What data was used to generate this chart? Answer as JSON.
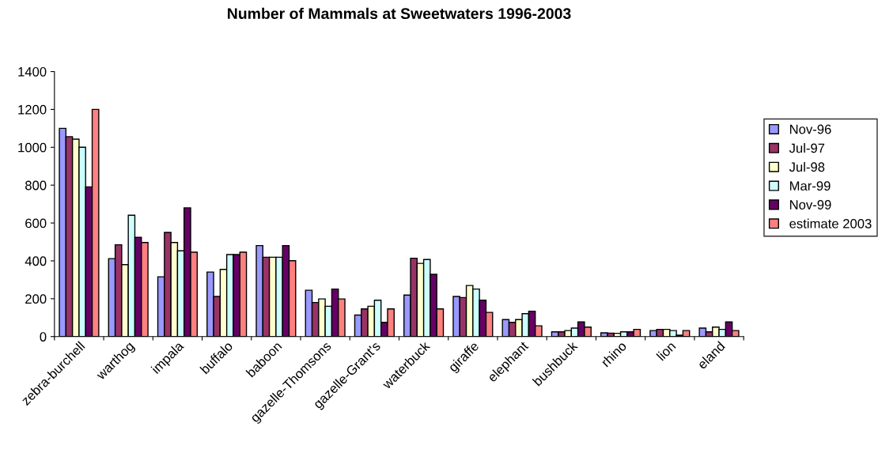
{
  "chart_data": {
    "type": "bar",
    "title": "Number of Mammals at Sweetwaters 1996-2003",
    "categories": [
      "zebra-burchell",
      "warthog",
      "impala",
      "buffalo",
      "baboon",
      "gazelle-Thomsons",
      "gazelle-Grant's",
      "waterbuck",
      "giraffe",
      "elephant",
      "bushbuck",
      "rhino",
      "lion",
      "eland"
    ],
    "series": [
      {
        "name": "Nov-96",
        "color": "#9999ff",
        "values": [
          1100,
          412,
          316,
          341,
          481,
          245,
          114,
          219,
          212,
          90,
          25,
          20,
          32,
          45
        ]
      },
      {
        "name": "Jul-97",
        "color": "#993366",
        "values": [
          1056,
          485,
          550,
          212,
          419,
          180,
          146,
          414,
          206,
          75,
          25,
          18,
          38,
          25
        ]
      },
      {
        "name": "Jul-98",
        "color": "#ffffcc",
        "values": [
          1043,
          380,
          497,
          355,
          419,
          199,
          160,
          387,
          270,
          90,
          32,
          17,
          38,
          50
        ]
      },
      {
        "name": "Mar-99",
        "color": "#ccffff",
        "values": [
          1000,
          641,
          453,
          433,
          419,
          160,
          192,
          407,
          251,
          121,
          45,
          25,
          32,
          38
        ]
      },
      {
        "name": "Nov-99",
        "color": "#660066",
        "values": [
          791,
          524,
          680,
          433,
          481,
          251,
          75,
          329,
          192,
          134,
          77,
          25,
          7,
          77
        ]
      },
      {
        "name": "estimate 2003",
        "color": "#ff8080",
        "values": [
          1200,
          497,
          446,
          446,
          401,
          199,
          146,
          146,
          128,
          57,
          50,
          38,
          32,
          32
        ]
      }
    ],
    "ylim": [
      0,
      1400
    ],
    "yticks": [
      0,
      200,
      400,
      600,
      800,
      1000,
      1200,
      1400
    ],
    "legend": "right",
    "grid": false
  }
}
